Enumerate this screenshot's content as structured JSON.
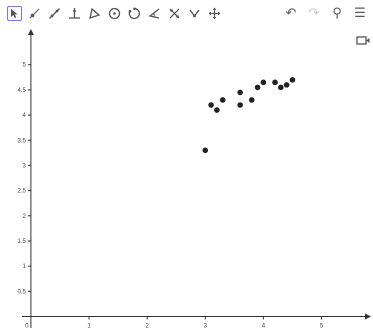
{
  "toolbar": {
    "left_tools": [
      {
        "name": "move-tool",
        "icon": "pointer-arrow-icon",
        "selected": true
      },
      {
        "name": "point-tool",
        "icon": "point-icon"
      },
      {
        "name": "line-tool",
        "icon": "line-icon"
      },
      {
        "name": "perpendicular-line-tool",
        "icon": "perpendicular-icon"
      },
      {
        "name": "polygon-tool",
        "icon": "triangle-icon"
      },
      {
        "name": "circle-tool",
        "icon": "circle-icon"
      },
      {
        "name": "circle-three-points-tool",
        "icon": "circle-points-icon"
      },
      {
        "name": "angle-tool",
        "icon": "angle-icon"
      },
      {
        "name": "reflect-tool",
        "icon": "reflect-icon"
      },
      {
        "name": "slider-tool",
        "icon": "slider-icon"
      },
      {
        "name": "move-graphics-view-tool",
        "icon": "move-cross-icon"
      }
    ],
    "right_tools": [
      {
        "name": "undo-button",
        "icon": "undo-icon",
        "glyph": "↶",
        "enabled": true
      },
      {
        "name": "redo-button",
        "icon": "redo-icon",
        "glyph": "↷",
        "enabled": false
      },
      {
        "name": "search-button",
        "icon": "search-icon",
        "glyph": "⚲",
        "enabled": true
      },
      {
        "name": "menu-button",
        "icon": "hamburger-menu-icon",
        "glyph": "☰",
        "enabled": true
      }
    ]
  },
  "chart_data": {
    "type": "scatter",
    "title": "",
    "xlabel": "",
    "ylabel": "",
    "xlim": [
      -0.05,
      5.8
    ],
    "ylim": [
      -0.1,
      11.3
    ],
    "x_ticks": [
      0,
      1,
      2,
      3,
      4,
      5
    ],
    "x_tick_labels": [
      "0",
      "1",
      "2",
      "3",
      "4",
      "5"
    ],
    "y_ticks": [
      1,
      2,
      3,
      4,
      5,
      6,
      7,
      8,
      9,
      10
    ],
    "y_tick_labels": [
      "0.5",
      "1",
      "1.5",
      "2",
      "2.5",
      "3",
      "3.5",
      "4",
      "4.5",
      "5"
    ],
    "grid": false,
    "point_color": "#222222",
    "points": [
      {
        "x": 3.0,
        "y": 6.6
      },
      {
        "x": 3.1,
        "y": 8.4
      },
      {
        "x": 3.2,
        "y": 8.2
      },
      {
        "x": 3.3,
        "y": 8.6
      },
      {
        "x": 3.6,
        "y": 8.4
      },
      {
        "x": 3.6,
        "y": 8.9
      },
      {
        "x": 3.8,
        "y": 8.6
      },
      {
        "x": 3.9,
        "y": 9.1
      },
      {
        "x": 4.0,
        "y": 9.3
      },
      {
        "x": 4.2,
        "y": 9.3
      },
      {
        "x": 4.3,
        "y": 9.1
      },
      {
        "x": 4.4,
        "y": 9.2
      },
      {
        "x": 4.5,
        "y": 9.4
      }
    ]
  }
}
